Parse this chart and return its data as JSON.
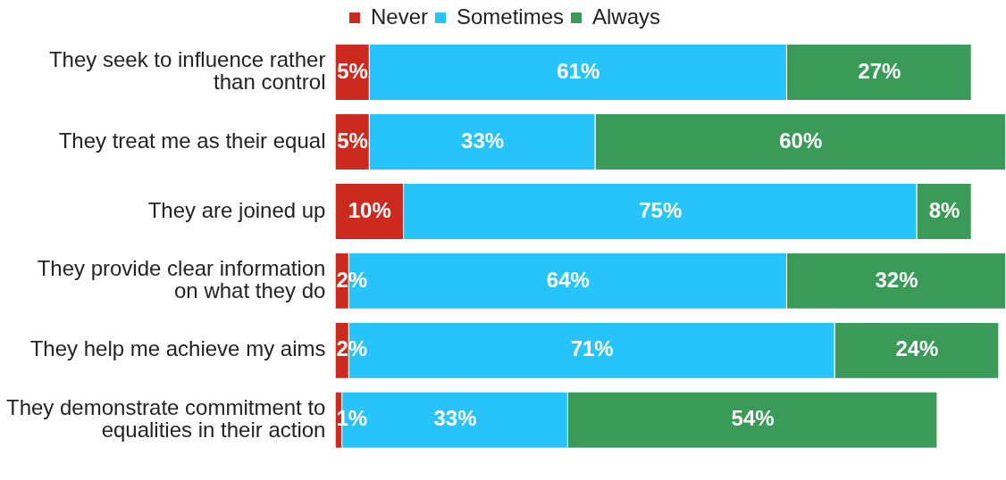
{
  "chart_data": {
    "type": "bar",
    "orientation": "horizontal",
    "stacked": true,
    "legend": "top",
    "categories": [
      "They seek to influence rather than control",
      "They treat me as their equal",
      "They are joined up",
      "They provide clear information on what they do",
      "They help me achieve my aims",
      "They demonstrate commitment to equalities in their action"
    ],
    "series": [
      {
        "name": "Never",
        "color": "#cc2a1e",
        "values": [
          5,
          5,
          10,
          2,
          2,
          1
        ],
        "value_labels": [
          "5%",
          "5%",
          "10%",
          "2%",
          "2%",
          "1%"
        ]
      },
      {
        "name": "Sometimes",
        "color": "#27c4fb",
        "values": [
          61,
          33,
          75,
          64,
          71,
          33
        ],
        "value_labels": [
          "61%",
          "33%",
          "75%",
          "64%",
          "71%",
          "33%"
        ]
      },
      {
        "name": "Always",
        "color": "#3a9a58",
        "values": [
          27,
          60,
          8,
          32,
          24,
          54
        ],
        "value_labels": [
          "27%",
          "60%",
          "8%",
          "32%",
          "24%",
          "54%"
        ]
      }
    ]
  }
}
